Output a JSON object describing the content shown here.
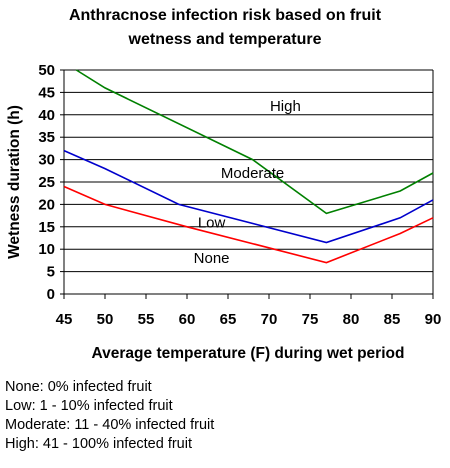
{
  "chart_data": {
    "type": "line",
    "title_lines": [
      "Anthracnose infection risk based on fruit",
      "wetness and temperature"
    ],
    "xlabel": "Average temperature (F) during wet period",
    "ylabel": "Wetness duration (h)",
    "xlim": [
      45,
      90
    ],
    "ylim": [
      0,
      50
    ],
    "xticks": [
      45,
      50,
      55,
      60,
      65,
      70,
      75,
      80,
      85,
      90
    ],
    "yticks": [
      0,
      5,
      10,
      15,
      20,
      25,
      30,
      35,
      40,
      45,
      50
    ],
    "grid": "horizontal",
    "series": [
      {
        "color": "#ff0000",
        "x": [
          45,
          50,
          60,
          77,
          86,
          90
        ],
        "y": [
          24,
          20,
          15,
          7,
          13.5,
          17
        ]
      },
      {
        "color": "#0000cc",
        "x": [
          45,
          50,
          59,
          77,
          86,
          90
        ],
        "y": [
          32,
          28,
          20,
          11.5,
          17,
          21
        ]
      },
      {
        "color": "#008000",
        "x": [
          46.5,
          50,
          68,
          77,
          86,
          90
        ],
        "y": [
          50,
          46,
          30,
          18,
          23,
          27
        ]
      }
    ],
    "region_labels": [
      {
        "text": "High",
        "x": 72,
        "y": 42
      },
      {
        "text": "Moderate",
        "x": 68,
        "y": 27
      },
      {
        "text": "Low",
        "x": 63,
        "y": 16
      },
      {
        "text": "None",
        "x": 63,
        "y": 8
      }
    ]
  },
  "legend_notes": [
    "None: 0% infected fruit",
    "Low: 1 - 10% infected fruit",
    "Moderate: 11 - 40% infected fruit",
    "High: 41 - 100% infected fruit"
  ]
}
